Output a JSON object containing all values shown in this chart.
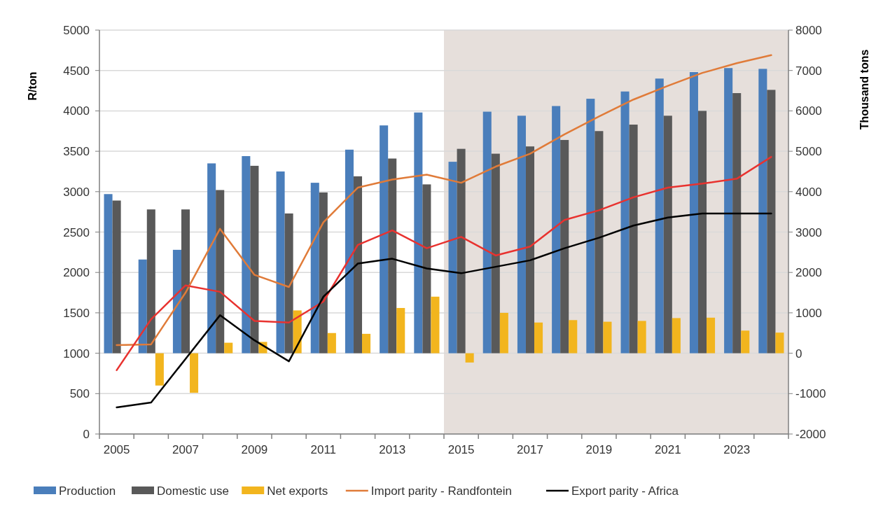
{
  "chart_data": {
    "type": "bar",
    "ylabel": "R/ton",
    "y2label": "Thousand tons",
    "x": [
      2005,
      2006,
      2007,
      2008,
      2009,
      2010,
      2011,
      2012,
      2013,
      2014,
      2015,
      2016,
      2017,
      2018,
      2019,
      2020,
      2021,
      2022,
      2023,
      2024
    ],
    "xlim": [
      2004.5,
      2024.5
    ],
    "xticks": [
      {
        "value": 2004.5,
        "label": null
      },
      {
        "value": 2005.5,
        "label": null
      },
      {
        "value": 2006.5,
        "label": null
      },
      {
        "value": 2007.5,
        "label": null
      },
      {
        "value": 2008.5,
        "label": null
      },
      {
        "value": 2009.5,
        "label": null
      },
      {
        "value": 2010.5,
        "label": null
      },
      {
        "value": 2011.5,
        "label": null
      },
      {
        "value": 2012.5,
        "label": null
      },
      {
        "value": 2013.5,
        "label": null
      },
      {
        "value": 2014.5,
        "label": null
      },
      {
        "value": 2015.5,
        "label": null
      },
      {
        "value": 2016.5,
        "label": null
      },
      {
        "value": 2017.5,
        "label": null
      },
      {
        "value": 2018.5,
        "label": null
      },
      {
        "value": 2019.5,
        "label": null
      },
      {
        "value": 2020.5,
        "label": null
      },
      {
        "value": 2021.5,
        "label": null
      },
      {
        "value": 2022.5,
        "label": null
      },
      {
        "value": 2023.5,
        "label": null
      },
      {
        "value": 2024.5,
        "label": null
      },
      2005,
      2007,
      2009,
      2011,
      2013,
      2015,
      2017,
      2019,
      2021,
      2023
    ],
    "ylim": [
      0,
      5000
    ],
    "yticks": [
      0,
      500,
      1000,
      1500,
      2000,
      2500,
      3000,
      3500,
      4000,
      4500,
      5000
    ],
    "y2lim": [
      -2000,
      8000
    ],
    "y2ticks": [
      -2000,
      -1000,
      0,
      1000,
      2000,
      3000,
      4000,
      5000,
      6000,
      7000,
      8000
    ],
    "grid": "y",
    "legend": "bottom",
    "bands": [
      {
        "axis": "x",
        "from": 2014.5,
        "to": 2024.5,
        "color": "#e6dfdb"
      }
    ],
    "series": [
      {
        "name": "Production",
        "axis": "y2",
        "color": "#4a7ebb",
        "values": [
          3940,
          2320,
          2560,
          4700,
          4880,
          4500,
          4220,
          5040,
          5640,
          5960,
          4740,
          5980,
          5880,
          6120,
          6300,
          6480,
          6800,
          6960,
          7060,
          7040
        ]
      },
      {
        "name": "Domestic use",
        "axis": "y2",
        "color": "#595959",
        "values": [
          3780,
          3560,
          3560,
          4040,
          4640,
          3460,
          3980,
          4380,
          4820,
          4180,
          5060,
          4940,
          5120,
          5280,
          5500,
          5660,
          5880,
          6000,
          6440,
          6520
        ]
      },
      {
        "name": "Net exports",
        "axis": "y2",
        "color": "#f2b51e",
        "values": [
          null,
          -800,
          -980,
          260,
          280,
          1060,
          500,
          480,
          1120,
          1400,
          -230,
          1000,
          760,
          820,
          780,
          800,
          870,
          880,
          560,
          510
        ]
      },
      {
        "name": "Import parity - Randfontein",
        "type": "line",
        "axis": "y",
        "color": "#e07b39",
        "values": [
          1100,
          1110,
          1750,
          2540,
          1970,
          1820,
          2620,
          3050,
          3150,
          3210,
          3110,
          3310,
          3470,
          3710,
          3930,
          4140,
          4310,
          4470,
          4590,
          4690
        ]
      },
      {
        "type": "line",
        "axis": "y",
        "color": "#e8322f",
        "values": [
          790,
          1420,
          1840,
          1760,
          1400,
          1380,
          1640,
          2340,
          2520,
          2300,
          2440,
          2210,
          2320,
          2650,
          2770,
          2930,
          3050,
          3100,
          3160,
          3430
        ]
      },
      {
        "name": "Export parity - Africa",
        "type": "line",
        "axis": "y",
        "color": "#000000",
        "values": [
          330,
          390,
          930,
          1470,
          1160,
          900,
          1700,
          2110,
          2170,
          2050,
          1990,
          2070,
          2150,
          2300,
          2430,
          2580,
          2680,
          2730,
          2730,
          2730
        ]
      }
    ]
  }
}
